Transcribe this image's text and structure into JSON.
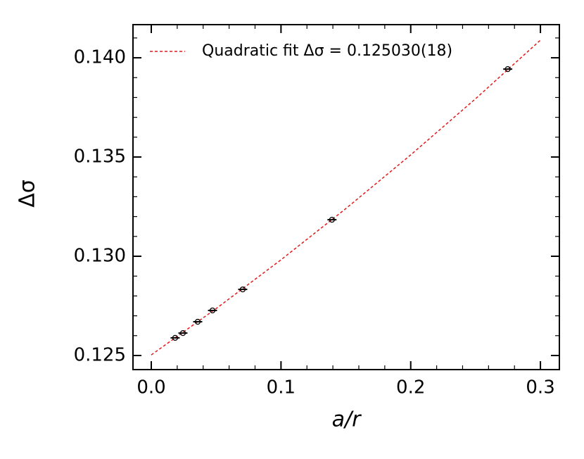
{
  "chart_data": {
    "type": "scatter",
    "xlabel": "a/r",
    "ylabel": "Δσ",
    "xlim": [
      -0.0141,
      0.3146
    ],
    "ylim": [
      0.12429,
      0.14167
    ],
    "xticks": [
      {
        "value": 0,
        "label": "0.0"
      },
      0.1,
      0.2,
      0.3
    ],
    "yticks": [
      0.125,
      {
        "value": 0.13,
        "label": "0.130"
      },
      0.135,
      {
        "value": 0.14,
        "label": "0.140"
      }
    ],
    "xminorticks": [
      0.02,
      0.04,
      0.06,
      0.08,
      0.12,
      0.14,
      0.16,
      0.18,
      0.22,
      0.24,
      0.26,
      0.28
    ],
    "yminorticks": [
      0.126,
      0.127,
      0.128,
      0.129,
      0.131,
      0.132,
      0.133,
      0.134,
      0.136,
      0.137,
      0.138,
      0.139,
      0.141
    ],
    "legend": "upper left",
    "series": [
      {
        "name": "Quadratic fit Δσ = 0.125030(18)",
        "kind": "line",
        "color": "#e31a1c",
        "x": [
          0,
          0.05,
          0.1,
          0.15,
          0.2,
          0.25,
          0.3
        ],
        "values": [
          0.12503,
          0.127364,
          0.129822,
          0.132403,
          0.135108,
          0.137937,
          0.14089
        ]
      },
      {
        "kind": "points",
        "color": "#000000",
        "x": [
          0.0184,
          0.0244,
          0.0358,
          0.0472,
          0.0705,
          0.1393,
          0.2748
        ],
        "xerr": [
          0.0035,
          0.0035,
          0.0035,
          0.0035,
          0.0035,
          0.0035,
          0.0035
        ],
        "values": [
          0.12589,
          0.12613,
          0.1267,
          0.12727,
          0.12833,
          0.13184,
          0.13943
        ]
      }
    ]
  }
}
